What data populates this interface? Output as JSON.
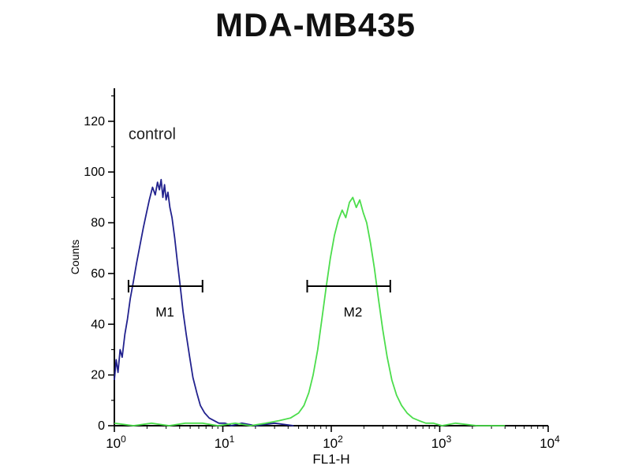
{
  "title": "MDA-MB435",
  "chart_data": {
    "type": "line",
    "chart_kind": "flow-cytometry-histogram",
    "title": "MDA-MB435",
    "xlabel": "FL1-H",
    "ylabel": "Counts",
    "x_scale": "log10",
    "xlim": [
      1,
      10000
    ],
    "ylim": [
      0,
      133
    ],
    "y_ticks": [
      0,
      20,
      40,
      60,
      80,
      100,
      120
    ],
    "x_decades": [
      0,
      1,
      2,
      3,
      4
    ],
    "grid": false,
    "legend": "none",
    "annotation": {
      "text": "control",
      "x": 1.35,
      "y": 113
    },
    "colors": {
      "axis": "#000000",
      "control_curve": "#22228e",
      "sample_curve": "#4cdd4c"
    },
    "series": [
      {
        "name": "control",
        "color": "#22228e",
        "x": [
          1.0,
          1.04,
          1.08,
          1.13,
          1.18,
          1.25,
          1.32,
          1.4,
          1.5,
          1.6,
          1.72,
          1.85,
          1.98,
          2.1,
          2.25,
          2.38,
          2.5,
          2.6,
          2.7,
          2.8,
          2.9,
          3.0,
          3.12,
          3.25,
          3.4,
          3.6,
          3.8,
          4.05,
          4.3,
          4.6,
          4.95,
          5.3,
          5.75,
          6.2,
          6.8,
          7.5,
          8.3,
          9.2,
          10.5,
          12,
          15,
          20,
          30,
          45
        ],
        "y": [
          18,
          26,
          21,
          30,
          27,
          36,
          42,
          50,
          57,
          64,
          71,
          78,
          84,
          89,
          94,
          91,
          96,
          93,
          97,
          90,
          95,
          89,
          92,
          86,
          82,
          74,
          65,
          55,
          45,
          36,
          27,
          19,
          13,
          8,
          5,
          3,
          2,
          1,
          1,
          0,
          1,
          0,
          1,
          0
        ]
      },
      {
        "name": "sample",
        "color": "#4cdd4c",
        "x": [
          1.0,
          1.5,
          2.2,
          3.2,
          4.5,
          6.5,
          9.0,
          13,
          18,
          25,
          33,
          42,
          50,
          56,
          62,
          68,
          75,
          82,
          90,
          98,
          107,
          116,
          126,
          136,
          147,
          158,
          170,
          183,
          197,
          212,
          230,
          250,
          272,
          298,
          328,
          362,
          400,
          445,
          500,
          565,
          645,
          745,
          870,
          1050,
          1400,
          2200,
          4000
        ],
        "y": [
          1,
          0,
          1,
          0,
          1,
          1,
          0,
          1,
          0,
          1,
          2,
          3,
          5,
          8,
          13,
          20,
          30,
          42,
          55,
          66,
          75,
          81,
          85,
          82,
          88,
          90,
          86,
          89,
          84,
          80,
          72,
          62,
          50,
          38,
          27,
          18,
          12,
          8,
          5,
          3,
          2,
          1,
          1,
          0,
          1,
          0,
          0
        ]
      }
    ],
    "gates": [
      {
        "label": "M1",
        "from_x": 1.35,
        "to_x": 6.5,
        "y": 55,
        "label_x": 2.4,
        "label_y": 43
      },
      {
        "label": "M2",
        "from_x": 60,
        "to_x": 350,
        "y": 55,
        "label_x": 130,
        "label_y": 43
      }
    ]
  }
}
